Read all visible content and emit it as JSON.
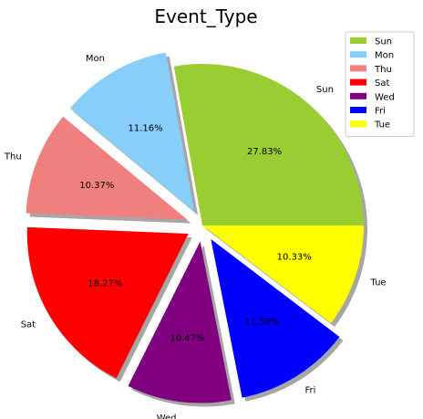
{
  "chart_data": {
    "type": "pie",
    "title": "Event_Type",
    "slices": [
      {
        "label": "Sun",
        "value": 27.83,
        "pct_label": "27.83%",
        "color": "#9acd32",
        "explode": 0.0
      },
      {
        "label": "Mon",
        "value": 11.16,
        "pct_label": "11.16%",
        "color": "#87cefa",
        "explode": 0.1
      },
      {
        "label": "Thu",
        "value": 10.37,
        "pct_label": "10.37%",
        "color": "#f08080",
        "explode": 0.1
      },
      {
        "label": "Sat",
        "value": 18.27,
        "pct_label": "18.27%",
        "color": "#ff0000",
        "explode": 0.1
      },
      {
        "label": "Wed",
        "value": 10.47,
        "pct_label": "10.47%",
        "color": "#800080",
        "explode": 0.1
      },
      {
        "label": "Fri",
        "value": 11.58,
        "pct_label": "11.58%",
        "color": "#0000ff",
        "explode": 0.1
      },
      {
        "label": "Tue",
        "value": 10.33,
        "pct_label": "10.33%",
        "color": "#ffff00",
        "explode": 0.0
      }
    ],
    "start_angle_deg": 0,
    "direction": "counterclockwise",
    "shadow": true,
    "legend": {
      "placement": "top-right",
      "entries": [
        "Sun",
        "Mon",
        "Thu",
        "Sat",
        "Wed",
        "Fri",
        "Tue"
      ]
    }
  }
}
